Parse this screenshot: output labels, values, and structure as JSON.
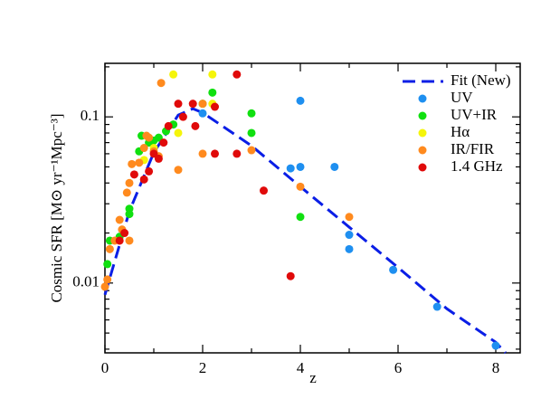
{
  "chart_data": {
    "type": "scatter",
    "xlabel": "z",
    "ylabel": "Cosmic SFR [M⊙ yr⁻¹Mpc⁻³]",
    "xlim": [
      0,
      8.5
    ],
    "ylim": [
      0.0038,
      0.21
    ],
    "log_y": true,
    "xticks": [
      0,
      2,
      4,
      6,
      8
    ],
    "xminorticks": [
      1,
      3,
      5,
      7
    ],
    "yticks": [
      0.01,
      0.1
    ],
    "yminorticks": [
      0.004,
      0.005,
      0.006,
      0.007,
      0.008,
      0.009,
      0.02,
      0.03,
      0.04,
      0.05,
      0.06,
      0.07,
      0.08,
      0.09,
      0.2
    ],
    "legend": "upper right",
    "series": [
      {
        "name": "Fit (New)",
        "color": "#0a1ee6",
        "mark": "dashed-line",
        "x": [
          0,
          0.2,
          0.5,
          1,
          1.5,
          1.8,
          2,
          3,
          4,
          5,
          6,
          7,
          8,
          8.2
        ],
        "values": [
          0.0085,
          0.0135,
          0.027,
          0.061,
          0.1025,
          0.112,
          0.106,
          0.067,
          0.038,
          0.0217,
          0.0124,
          0.007,
          0.0044,
          0.0038
        ]
      },
      {
        "name": "UV",
        "color": "#1e8ff0",
        "mark": "dot",
        "x": [
          2.0,
          3.8,
          4.0,
          4.0,
          4.7,
          5.0,
          5.0,
          5.9,
          6.8,
          8.0
        ],
        "values": [
          0.105,
          0.049,
          0.05,
          0.125,
          0.05,
          0.0195,
          0.016,
          0.012,
          0.0072,
          0.0042
        ]
      },
      {
        "name": "UV+IR",
        "color": "#10e010",
        "mark": "dot",
        "x": [
          0.05,
          0.1,
          0.3,
          0.5,
          0.5,
          0.7,
          0.75,
          0.9,
          1.0,
          1.1,
          1.25,
          1.4,
          2.0,
          2.2,
          3.0,
          3.0,
          4.0
        ],
        "values": [
          0.013,
          0.018,
          0.019,
          0.028,
          0.026,
          0.062,
          0.077,
          0.07,
          0.072,
          0.075,
          0.082,
          0.09,
          0.12,
          0.14,
          0.105,
          0.08,
          0.025
        ]
      },
      {
        "name": "Hα",
        "color": "#f5f50a",
        "mark": "dot",
        "x": [
          0.8,
          1.0,
          1.4,
          1.5,
          2.2,
          2.2
        ],
        "values": [
          0.055,
          0.065,
          0.18,
          0.08,
          0.18,
          0.12
        ]
      },
      {
        "name": "IR/FIR",
        "color": "#ff8a1e",
        "mark": "dot",
        "x": [
          0.0,
          0.05,
          0.1,
          0.2,
          0.3,
          0.35,
          0.45,
          0.5,
          0.5,
          0.55,
          0.7,
          0.8,
          0.85,
          0.9,
          1.0,
          1.1,
          1.15,
          1.5,
          2.0,
          2.0,
          3.0,
          4.0,
          5.0
        ],
        "values": [
          0.0095,
          0.0105,
          0.016,
          0.018,
          0.024,
          0.021,
          0.035,
          0.04,
          0.018,
          0.052,
          0.053,
          0.065,
          0.077,
          0.075,
          0.062,
          0.058,
          0.16,
          0.048,
          0.06,
          0.12,
          0.063,
          0.038,
          0.025
        ]
      },
      {
        "name": "1.4 GHz",
        "color": "#e00a0a",
        "mark": "dot",
        "x": [
          0.3,
          0.4,
          0.6,
          0.8,
          0.9,
          1.0,
          1.1,
          1.2,
          1.3,
          1.5,
          1.6,
          1.8,
          1.85,
          2.25,
          2.25,
          2.7,
          2.7,
          3.25,
          3.8
        ],
        "values": [
          0.018,
          0.02,
          0.045,
          0.042,
          0.047,
          0.06,
          0.056,
          0.07,
          0.088,
          0.12,
          0.1,
          0.12,
          0.088,
          0.115,
          0.06,
          0.18,
          0.06,
          0.036,
          0.011
        ]
      }
    ]
  }
}
